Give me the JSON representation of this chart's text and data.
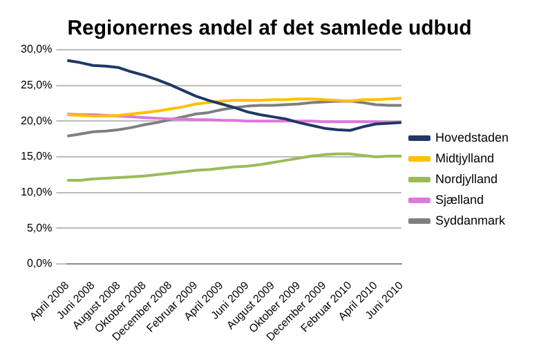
{
  "chart_data": {
    "type": "line",
    "title": "Regionernes andel af det samlede udbud",
    "categories": [
      "April 2008",
      null,
      "Juni 2008",
      null,
      "August 2008",
      null,
      "Oktober 2008",
      null,
      "December 2008",
      null,
      "Februar 2009",
      null,
      "April 2009",
      null,
      "Juni 2009",
      null,
      "August 2009",
      null,
      "Oktober 2009",
      null,
      "December 2009",
      null,
      "Februar 2010",
      null,
      "April 2010",
      null,
      "Juni 2010"
    ],
    "series": [
      {
        "name": "Hovedstaden",
        "color": "#1f3864",
        "values": [
          28.5,
          28.2,
          27.8,
          27.7,
          27.5,
          26.9,
          26.4,
          25.8,
          25.1,
          24.3,
          23.5,
          22.9,
          22.4,
          21.9,
          21.3,
          20.9,
          20.6,
          20.3,
          19.8,
          19.4,
          19.0,
          18.8,
          18.7,
          19.2,
          19.6,
          19.7,
          19.8
        ]
      },
      {
        "name": "Midtjylland",
        "color": "#ffc000",
        "values": [
          20.9,
          20.8,
          20.7,
          20.7,
          20.8,
          21.0,
          21.2,
          21.4,
          21.7,
          22.0,
          22.4,
          22.6,
          22.8,
          22.9,
          22.9,
          22.9,
          23.0,
          23.0,
          23.1,
          23.1,
          23.0,
          22.9,
          22.8,
          23.0,
          23.0,
          23.1,
          23.2
        ]
      },
      {
        "name": "Nordjylland",
        "color": "#9bbb59",
        "values": [
          11.7,
          11.7,
          11.9,
          12.0,
          12.1,
          12.2,
          12.3,
          12.5,
          12.7,
          12.9,
          13.1,
          13.2,
          13.4,
          13.6,
          13.7,
          13.9,
          14.2,
          14.5,
          14.8,
          15.1,
          15.3,
          15.4,
          15.4,
          15.2,
          15.0,
          15.1,
          15.1
        ]
      },
      {
        "name": "Sjælland",
        "color": "#dd77dd",
        "values": [
          21.0,
          20.9,
          20.9,
          20.8,
          20.7,
          20.6,
          20.5,
          20.4,
          20.3,
          20.3,
          20.2,
          20.2,
          20.1,
          20.1,
          20.0,
          20.0,
          20.0,
          20.0,
          20.0,
          20.0,
          19.9,
          19.9,
          19.9,
          19.9,
          19.9,
          19.8,
          19.8
        ]
      },
      {
        "name": "Syddanmark",
        "color": "#7f7f7f",
        "values": [
          17.9,
          18.2,
          18.5,
          18.6,
          18.8,
          19.1,
          19.5,
          19.8,
          20.2,
          20.6,
          21.0,
          21.2,
          21.6,
          21.9,
          22.1,
          22.2,
          22.2,
          22.3,
          22.4,
          22.6,
          22.7,
          22.8,
          22.8,
          22.6,
          22.3,
          22.2,
          22.2
        ]
      }
    ],
    "ylim": [
      0,
      30
    ],
    "yticks": [
      {
        "value": 0,
        "label": "0,0%"
      },
      {
        "value": 5,
        "label": "5,0%"
      },
      {
        "value": 10,
        "label": "10,0%"
      },
      {
        "value": 15,
        "label": "15,0%"
      },
      {
        "value": 20,
        "label": "20,0%"
      },
      {
        "value": 25,
        "label": "25,0%"
      },
      {
        "value": 30,
        "label": "30,0%"
      }
    ],
    "grid": "y",
    "legend": "right",
    "marker": "none",
    "line_style": "solid"
  }
}
